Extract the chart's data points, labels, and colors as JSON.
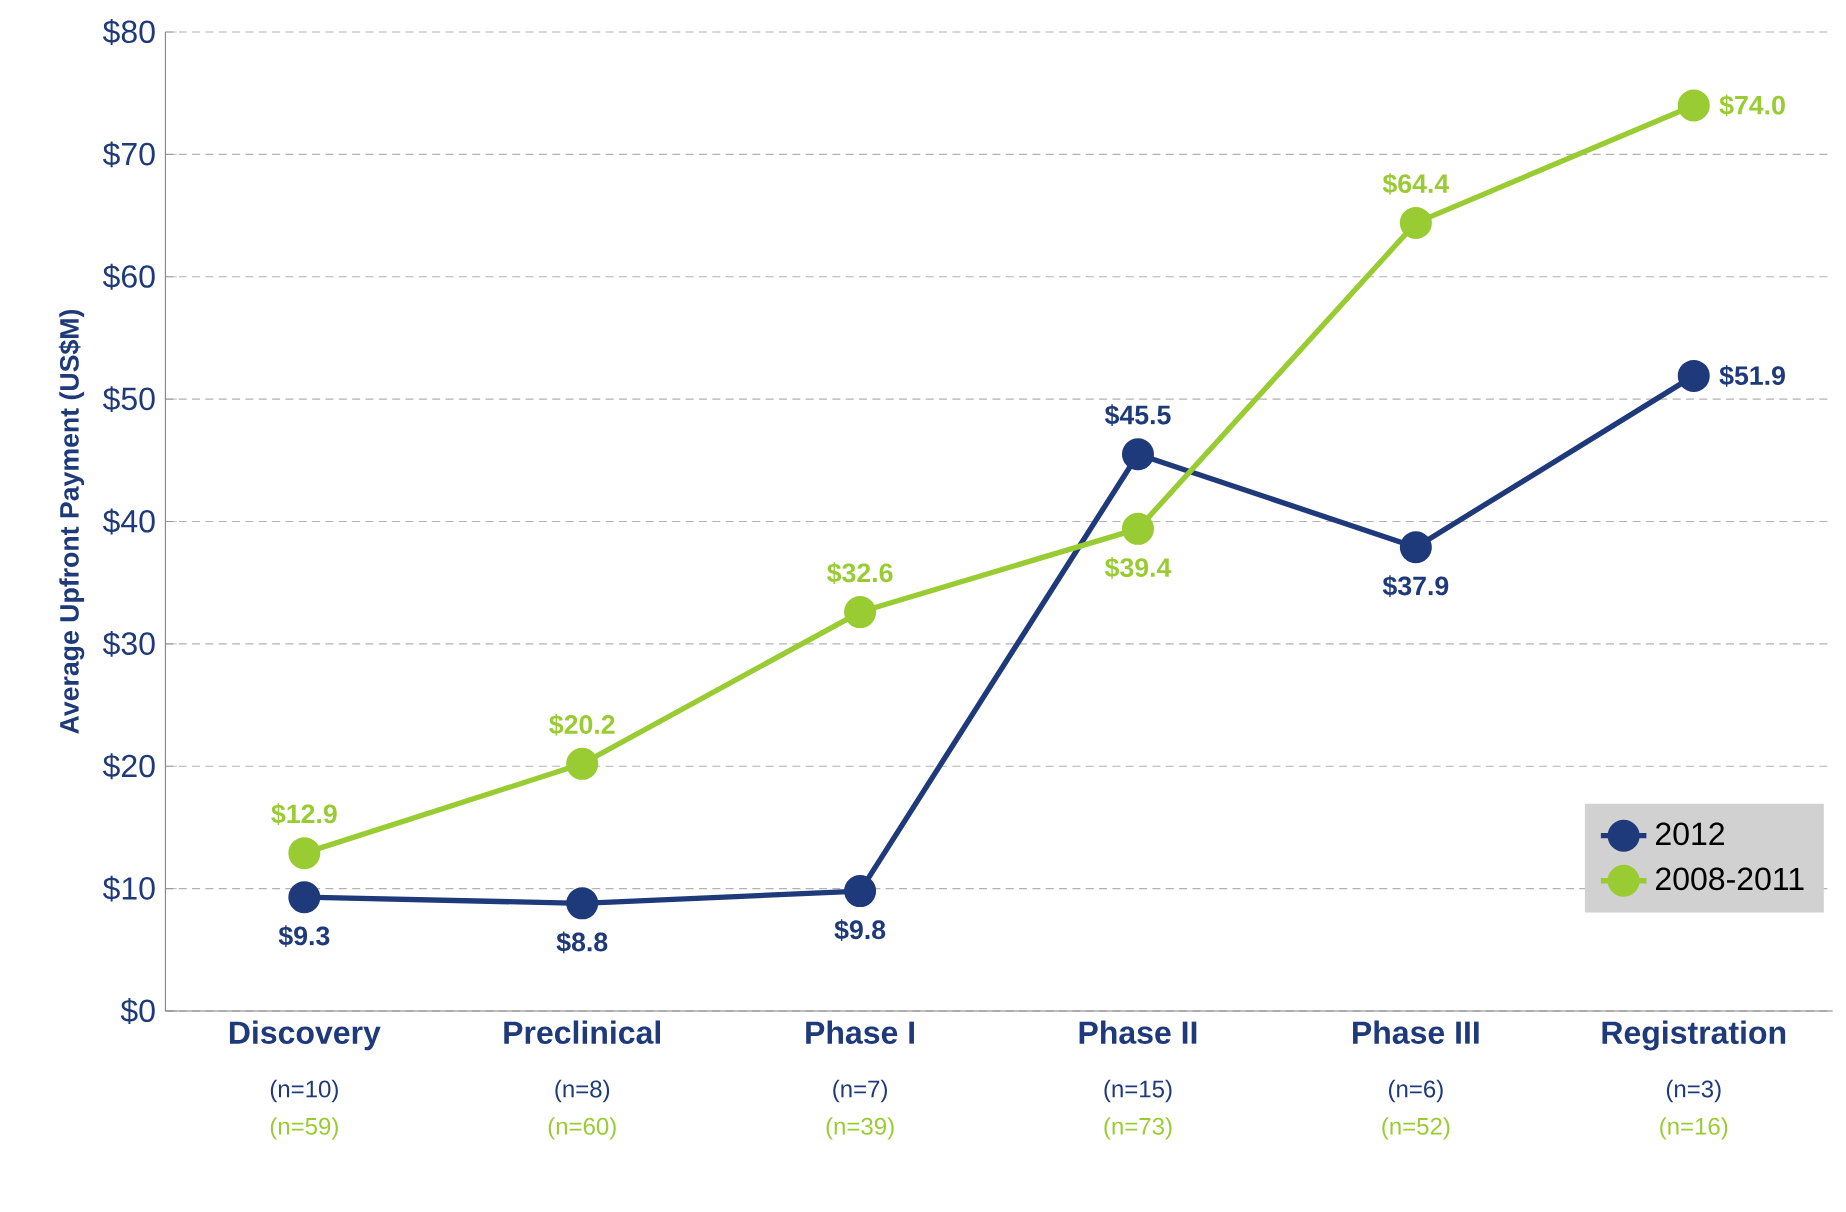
{
  "chart_data": {
    "type": "line",
    "ylabel": "Average Upfront Payment (US$M)",
    "categories": [
      "Discovery",
      "Preclinical",
      "Phase I",
      "Phase II",
      "Phase III",
      "Registration"
    ],
    "series": [
      {
        "name": "2012",
        "color": "#1f3a7a",
        "values": [
          9.3,
          8.8,
          9.8,
          45.5,
          37.9,
          51.9
        ],
        "value_labels": [
          "$9.3",
          "$8.8",
          "$9.8",
          "$45.5",
          "$37.9",
          "$51.9"
        ]
      },
      {
        "name": "2008-2011",
        "color": "#99cc33",
        "values": [
          12.9,
          20.2,
          32.6,
          39.4,
          64.4,
          74.0
        ],
        "value_labels": [
          "$12.9",
          "$20.2",
          "$32.6",
          "$39.4",
          "$64.4",
          "$74.0"
        ]
      }
    ],
    "ylim": [
      0,
      80
    ],
    "yticks": [
      {
        "value": 0,
        "label": "$0"
      },
      {
        "value": 10,
        "label": "$10"
      },
      {
        "value": 20,
        "label": "$20"
      },
      {
        "value": 30,
        "label": "$30"
      },
      {
        "value": 40,
        "label": "$40"
      },
      {
        "value": 50,
        "label": "$50"
      },
      {
        "value": 60,
        "label": "$60"
      },
      {
        "value": 70,
        "label": "$70"
      },
      {
        "value": 80,
        "label": "$80"
      }
    ],
    "annotations": [
      "(n=10)",
      "(n=8)",
      "(n=7)",
      "(n=15)",
      "(n=6)",
      "(n=3)",
      "(n=59)",
      "(n=60)",
      "(n=39)",
      "(n=73)",
      "(n=52)",
      "(n=16)"
    ],
    "grid": "y",
    "legend": "bottom right",
    "marker": "circle",
    "line_style": "solid"
  }
}
